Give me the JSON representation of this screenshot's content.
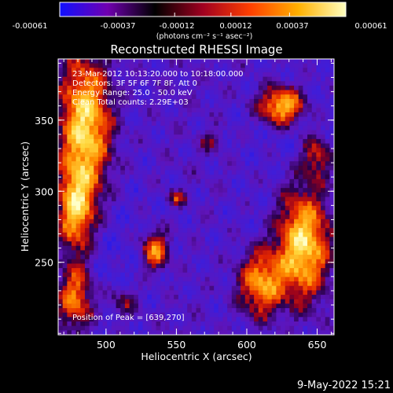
{
  "colorbar": {
    "tick_labels": [
      "-0.00061",
      "-0.00037",
      "-0.00012",
      "0.00012",
      "0.00037",
      "0.00061"
    ],
    "unit_label": "(photons cm⁻² s⁻¹ asec⁻²)",
    "range": [
      -0.00061,
      0.00061
    ],
    "colors": [
      "#1010ff",
      "#7000b0",
      "#000000",
      "#a00020",
      "#ff4000",
      "#ffb000",
      "#ffffc0"
    ]
  },
  "footer_timestamp": "9-May-2022 15:21",
  "chart_data": {
    "type": "heatmap",
    "title": "Reconstructed RHESSI Image",
    "xlabel": "Heliocentric X (arcsec)",
    "ylabel": "Heliocentric Y (arcsec)",
    "xlim": [
      466,
      662
    ],
    "ylim": [
      199,
      393
    ],
    "x_ticks": [
      500,
      550,
      600,
      650
    ],
    "y_ticks": [
      250,
      300,
      350
    ],
    "annotations": [
      "23-Mar-2012 10:13:20.000 to 10:18:00.000",
      "Detectors: 3F 5F 6F 7F 8F, Att 0",
      "Energy Range: 25.0 - 50.0 keV",
      "Clean    Total counts: 2.29E+03"
    ],
    "peak_label": "Position of Peak = [639,270]",
    "peak_position": [
      639,
      270
    ],
    "sources": [
      {
        "x": 485,
        "y": 345,
        "sx": 14,
        "sy": 38,
        "amp": 1.0
      },
      {
        "x": 478,
        "y": 285,
        "sx": 10,
        "sy": 22,
        "amp": 0.8
      },
      {
        "x": 478,
        "y": 225,
        "sx": 10,
        "sy": 18,
        "amp": 0.75
      },
      {
        "x": 640,
        "y": 262,
        "sx": 14,
        "sy": 30,
        "amp": 1.0
      },
      {
        "x": 610,
        "y": 235,
        "sx": 12,
        "sy": 18,
        "amp": 0.8
      },
      {
        "x": 625,
        "y": 360,
        "sx": 12,
        "sy": 10,
        "amp": 0.9
      },
      {
        "x": 650,
        "y": 325,
        "sx": 8,
        "sy": 12,
        "amp": 0.5
      },
      {
        "x": 535,
        "y": 258,
        "sx": 7,
        "sy": 10,
        "amp": 0.7
      },
      {
        "x": 550,
        "y": 295,
        "sx": 5,
        "sy": 4,
        "amp": 0.45
      },
      {
        "x": 575,
        "y": 335,
        "sx": 6,
        "sy": 5,
        "amp": 0.3
      },
      {
        "x": 512,
        "y": 222,
        "sx": 8,
        "sy": 8,
        "amp": 0.35
      }
    ]
  }
}
